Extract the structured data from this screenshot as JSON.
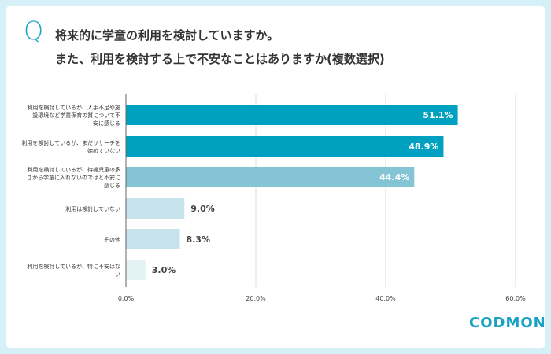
{
  "header": {
    "q_mark": "Q",
    "line1": "将来的に学童の利用を検討していますか。",
    "line2": "また、利用を検討する上で不安なことはありますか(複数選択)"
  },
  "logo": "CODMON",
  "chart_data": {
    "type": "bar",
    "orientation": "horizontal",
    "categories": [
      "利用を検討しているが、人手不足や施設環境など学童保育の質について不安に感じる",
      "利用を検討しているが、まだリサーチを始めていない",
      "利用を検討しているが、待機児童の多さから学童に入れないのではと不安に感じる",
      "利用は検討していない",
      "その他",
      "利用を検討しているが、特に不安はない"
    ],
    "category_lines": [
      [
        "利用を検討しているが、人手不足や施",
        "設環境など学童保育の質について不",
        "安に感じる"
      ],
      [
        "利用を検討しているが、まだリサーチを",
        "始めていない"
      ],
      [
        "利用を検討しているが、待機児童の多",
        "さから学童に入れないのではと不安に",
        "感じる"
      ],
      [
        "利用は検討していない"
      ],
      [
        "その他"
      ],
      [
        "利用を検討しているが、特に不安はな",
        "い"
      ]
    ],
    "values": [
      51.1,
      48.9,
      44.4,
      9.0,
      8.3,
      3.0
    ],
    "labels": [
      "51.1%",
      "48.9%",
      "44.4%",
      "9.0%",
      "8.3%",
      "3.0%"
    ],
    "colors": [
      "#00a0c0",
      "#00a0c0",
      "#84c4d4",
      "#c6e3eb",
      "#c6e3eb",
      "#e2f2f5"
    ],
    "xlim": [
      0,
      60
    ],
    "xticks": [
      "0.0%",
      "20.0%",
      "40.0%",
      "60.0%"
    ],
    "grid": true
  }
}
